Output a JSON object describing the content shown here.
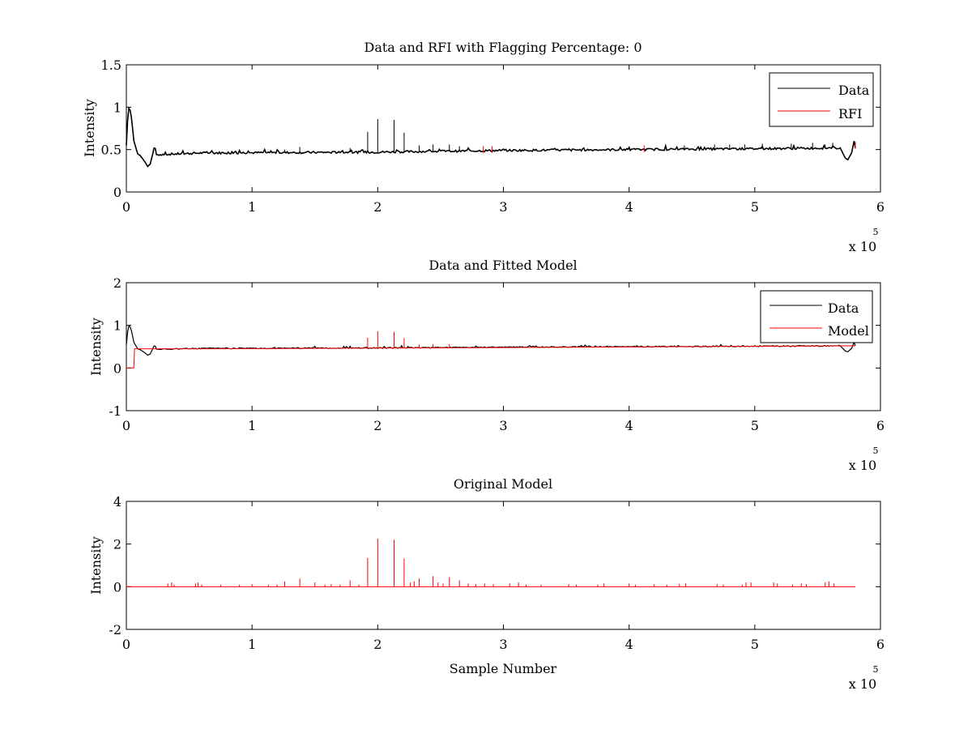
{
  "colors": {
    "data": "#000000",
    "rfi": "#ff0000",
    "axis": "#000000",
    "background": "#ffffff"
  },
  "chart_data": [
    {
      "type": "line",
      "title": "Data and RFI with Flagging Percentage: 0",
      "xlabel": "",
      "ylabel": "Intensity",
      "xlim": [
        0,
        600000
      ],
      "ylim": [
        0,
        1.5
      ],
      "x_ticks": [
        "0",
        "1",
        "2",
        "3",
        "4",
        "5",
        "6"
      ],
      "y_ticks": [
        "0",
        "0.5",
        "1",
        "1.5"
      ],
      "x_exponent": {
        "base": "x 10",
        "power": "5"
      },
      "legend": {
        "position": "top-right",
        "entries": [
          "Data",
          "RFI"
        ]
      },
      "baseline_points": [
        [
          0,
          0.55
        ],
        [
          1500,
          1.0
        ],
        [
          3500,
          0.95
        ],
        [
          6000,
          0.6
        ],
        [
          9000,
          0.45
        ],
        [
          11000,
          0.43
        ],
        [
          15000,
          0.35
        ],
        [
          17000,
          0.3
        ],
        [
          19000,
          0.33
        ],
        [
          21000,
          0.45
        ],
        [
          22500,
          0.55
        ],
        [
          24000,
          0.44
        ],
        [
          60000,
          0.46
        ],
        [
          200000,
          0.47
        ],
        [
          300000,
          0.49
        ],
        [
          400000,
          0.5
        ],
        [
          500000,
          0.51
        ],
        [
          568000,
          0.52
        ],
        [
          572000,
          0.4
        ],
        [
          574000,
          0.38
        ],
        [
          577000,
          0.46
        ],
        [
          579000,
          0.6
        ],
        [
          580000,
          0.52
        ]
      ],
      "spikes": [
        [
          192000,
          0.71
        ],
        [
          200000,
          0.86
        ],
        [
          213000,
          0.85
        ],
        [
          221000,
          0.7
        ],
        [
          233000,
          0.55
        ],
        [
          244000,
          0.56
        ],
        [
          257000,
          0.56
        ],
        [
          265000,
          0.54
        ],
        [
          138000,
          0.53
        ],
        [
          178000,
          0.52
        ],
        [
          126000,
          0.5
        ],
        [
          352000,
          0.52
        ],
        [
          400000,
          0.52
        ],
        [
          444000,
          0.55
        ],
        [
          468000,
          0.56
        ],
        [
          480000,
          0.56
        ],
        [
          492000,
          0.56
        ],
        [
          506000,
          0.57
        ],
        [
          529000,
          0.57
        ],
        [
          546000,
          0.58
        ],
        [
          556000,
          0.56
        ],
        [
          562000,
          0.58
        ]
      ],
      "rfi_marks": [
        [
          284000,
          0.5
        ],
        [
          291000,
          0.5
        ],
        [
          412000,
          0.51
        ],
        [
          580000,
          0.55
        ]
      ]
    },
    {
      "type": "line",
      "title": "Data and Fitted Model",
      "xlabel": "",
      "ylabel": "Intensity",
      "xlim": [
        0,
        600000
      ],
      "ylim": [
        -1,
        2
      ],
      "x_ticks": [
        "0",
        "1",
        "2",
        "3",
        "4",
        "5",
        "6"
      ],
      "y_ticks": [
        "-1",
        "0",
        "1",
        "2"
      ],
      "x_exponent": {
        "base": "x 10",
        "power": "5"
      },
      "legend": {
        "position": "top-right",
        "entries": [
          "Data",
          "Model"
        ]
      },
      "model_points": [
        [
          0,
          0.0
        ],
        [
          6000,
          0.0
        ],
        [
          6500,
          0.45
        ],
        [
          60000,
          0.45
        ],
        [
          300000,
          0.48
        ],
        [
          580000,
          0.52
        ]
      ],
      "model_spikes": [
        [
          192000,
          0.71
        ],
        [
          200000,
          0.86
        ],
        [
          213000,
          0.85
        ],
        [
          221000,
          0.7
        ],
        [
          233000,
          0.55
        ],
        [
          244000,
          0.56
        ],
        [
          257000,
          0.56
        ]
      ]
    },
    {
      "type": "line",
      "title": "Original Model",
      "xlabel": "Sample Number",
      "ylabel": "Intensity",
      "xlim": [
        0,
        600000
      ],
      "ylim": [
        -2,
        4
      ],
      "x_ticks": [
        "0",
        "1",
        "2",
        "3",
        "4",
        "5",
        "6"
      ],
      "y_ticks": [
        "-2",
        "0",
        "2",
        "4"
      ],
      "x_exponent": {
        "base": "x 10",
        "power": "5"
      },
      "legend": null,
      "baseline": 0.0,
      "x_end": 580000,
      "spikes": [
        [
          33000,
          0.15
        ],
        [
          36000,
          0.2
        ],
        [
          38000,
          0.1
        ],
        [
          55000,
          0.15
        ],
        [
          57000,
          0.2
        ],
        [
          60000,
          0.1
        ],
        [
          75000,
          0.1
        ],
        [
          90000,
          0.1
        ],
        [
          100000,
          0.12
        ],
        [
          113000,
          0.1
        ],
        [
          120000,
          0.1
        ],
        [
          126000,
          0.25
        ],
        [
          138000,
          0.38
        ],
        [
          150000,
          0.2
        ],
        [
          158000,
          0.1
        ],
        [
          163000,
          0.12
        ],
        [
          170000,
          0.1
        ],
        [
          178000,
          0.3
        ],
        [
          185000,
          0.1
        ],
        [
          192000,
          1.35
        ],
        [
          200000,
          2.25
        ],
        [
          213000,
          2.2
        ],
        [
          221000,
          1.32
        ],
        [
          226000,
          0.2
        ],
        [
          229000,
          0.25
        ],
        [
          233000,
          0.38
        ],
        [
          244000,
          0.5
        ],
        [
          248000,
          0.2
        ],
        [
          252000,
          0.15
        ],
        [
          257000,
          0.45
        ],
        [
          265000,
          0.3
        ],
        [
          272000,
          0.15
        ],
        [
          278000,
          0.12
        ],
        [
          285000,
          0.15
        ],
        [
          292000,
          0.12
        ],
        [
          305000,
          0.15
        ],
        [
          312000,
          0.2
        ],
        [
          318000,
          0.1
        ],
        [
          330000,
          0.1
        ],
        [
          352000,
          0.12
        ],
        [
          358000,
          0.1
        ],
        [
          375000,
          0.1
        ],
        [
          380000,
          0.15
        ],
        [
          400000,
          0.15
        ],
        [
          405000,
          0.1
        ],
        [
          420000,
          0.12
        ],
        [
          430000,
          0.1
        ],
        [
          440000,
          0.12
        ],
        [
          445000,
          0.15
        ],
        [
          470000,
          0.12
        ],
        [
          475000,
          0.1
        ],
        [
          490000,
          0.1
        ],
        [
          493000,
          0.2
        ],
        [
          497000,
          0.2
        ],
        [
          515000,
          0.2
        ],
        [
          518000,
          0.15
        ],
        [
          530000,
          0.1
        ],
        [
          537000,
          0.15
        ],
        [
          541000,
          0.12
        ],
        [
          556000,
          0.2
        ],
        [
          559000,
          0.25
        ],
        [
          563000,
          0.15
        ]
      ]
    }
  ]
}
